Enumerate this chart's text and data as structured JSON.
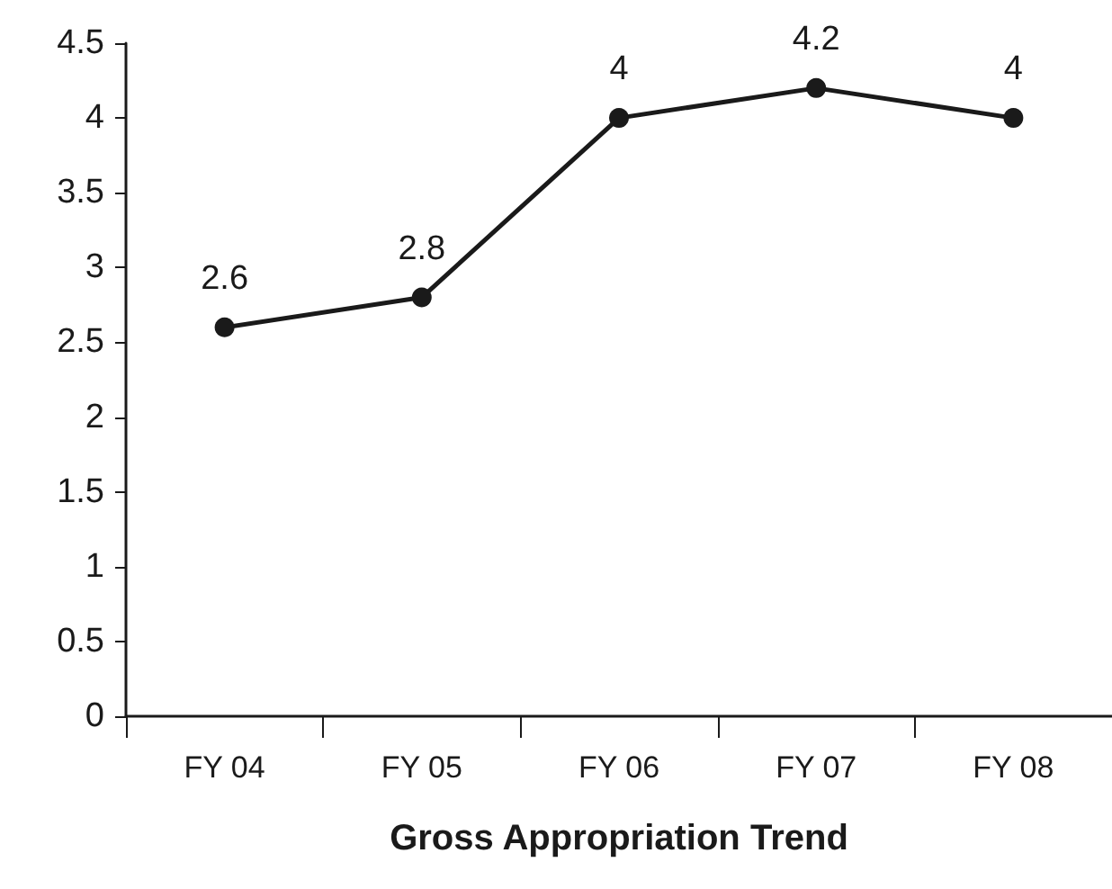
{
  "chart_data": {
    "type": "line",
    "xlabel": "Gross Appropriation Trend",
    "categories": [
      "FY 04",
      "FY 05",
      "FY 06",
      "FY 07",
      "FY 08"
    ],
    "series": [
      {
        "color": "#1a1a1a",
        "values": [
          2.6,
          2.8,
          4,
          4.2,
          4
        ]
      }
    ],
    "ylim": [
      0,
      4.5
    ],
    "yticks": [
      0,
      0.5,
      1,
      1.5,
      2,
      2.5,
      3,
      3.5,
      4,
      4.5
    ],
    "grid": false,
    "marker": "circle",
    "line_style": "solid",
    "data_labels": true
  }
}
